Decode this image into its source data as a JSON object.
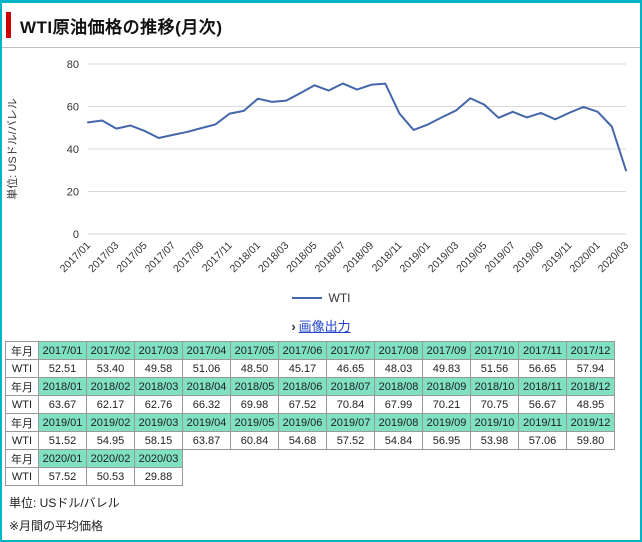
{
  "page": {
    "title": "WTI原油価格の推移(月次)",
    "link_arrow": "›",
    "image_output_link": "画像出力",
    "footer_unit": "単位: USドル/バレル",
    "footer_note": "※月間の平均価格"
  },
  "chart_data": {
    "type": "line",
    "title": "",
    "ylabel": "単位: USドル/バレル",
    "xlabel": "",
    "ylim": [
      0,
      80
    ],
    "yticks": [
      0,
      20,
      40,
      60,
      80
    ],
    "xtick_every": 2,
    "grid": "horizontal",
    "legend_position": "bottom-center",
    "line_color": "#4466aa",
    "x": [
      "2017/01",
      "2017/02",
      "2017/03",
      "2017/04",
      "2017/05",
      "2017/06",
      "2017/07",
      "2017/08",
      "2017/09",
      "2017/10",
      "2017/11",
      "2017/12",
      "2018/01",
      "2018/02",
      "2018/03",
      "2018/04",
      "2018/05",
      "2018/06",
      "2018/07",
      "2018/08",
      "2018/09",
      "2018/10",
      "2018/11",
      "2018/12",
      "2019/01",
      "2019/02",
      "2019/03",
      "2019/04",
      "2019/05",
      "2019/06",
      "2019/07",
      "2019/08",
      "2019/09",
      "2019/10",
      "2019/11",
      "2019/12",
      "2020/01",
      "2020/02",
      "2020/03"
    ],
    "series": [
      {
        "name": "WTI",
        "values": [
          52.51,
          53.4,
          49.58,
          51.06,
          48.5,
          45.17,
          46.65,
          48.03,
          49.83,
          51.56,
          56.65,
          57.94,
          63.67,
          62.17,
          62.76,
          66.32,
          69.98,
          67.52,
          70.84,
          67.99,
          70.21,
          70.75,
          56.67,
          48.95,
          51.52,
          54.95,
          58.15,
          63.87,
          60.84,
          54.68,
          57.52,
          54.84,
          56.95,
          53.98,
          57.06,
          59.8,
          57.52,
          50.53,
          29.88
        ]
      }
    ]
  },
  "table": {
    "rows": [
      {
        "label": "年月",
        "type": "header",
        "cells": [
          "2017/01",
          "2017/02",
          "2017/03",
          "2017/04",
          "2017/05",
          "2017/06",
          "2017/07",
          "2017/08",
          "2017/09",
          "2017/10",
          "2017/11",
          "2017/12"
        ]
      },
      {
        "label": "WTI",
        "type": "data",
        "cells": [
          "52.51",
          "53.40",
          "49.58",
          "51.06",
          "48.50",
          "45.17",
          "46.65",
          "48.03",
          "49.83",
          "51.56",
          "56.65",
          "57.94"
        ]
      },
      {
        "label": "年月",
        "type": "header",
        "cells": [
          "2018/01",
          "2018/02",
          "2018/03",
          "2018/04",
          "2018/05",
          "2018/06",
          "2018/07",
          "2018/08",
          "2018/09",
          "2018/10",
          "2018/11",
          "2018/12"
        ]
      },
      {
        "label": "WTI",
        "type": "data",
        "cells": [
          "63.67",
          "62.17",
          "62.76",
          "66.32",
          "69.98",
          "67.52",
          "70.84",
          "67.99",
          "70.21",
          "70.75",
          "56.67",
          "48.95"
        ]
      },
      {
        "label": "年月",
        "type": "header",
        "cells": [
          "2019/01",
          "2019/02",
          "2019/03",
          "2019/04",
          "2019/05",
          "2019/06",
          "2019/07",
          "2019/08",
          "2019/09",
          "2019/10",
          "2019/11",
          "2019/12"
        ]
      },
      {
        "label": "WTI",
        "type": "data",
        "cells": [
          "51.52",
          "54.95",
          "58.15",
          "63.87",
          "60.84",
          "54.68",
          "57.52",
          "54.84",
          "56.95",
          "53.98",
          "57.06",
          "59.80"
        ]
      },
      {
        "label": "年月",
        "type": "header",
        "cells": [
          "2020/01",
          "2020/02",
          "2020/03"
        ]
      },
      {
        "label": "WTI",
        "type": "data",
        "cells": [
          "57.52",
          "50.53",
          "29.88"
        ]
      }
    ]
  },
  "colors": {
    "page_border": "#00b4c8",
    "title_accent": "#cc0000",
    "table_header_bg": "#7fe0c2",
    "link": "#2244cc",
    "line": "#4466aa",
    "gridline": "#d9d9d9"
  }
}
